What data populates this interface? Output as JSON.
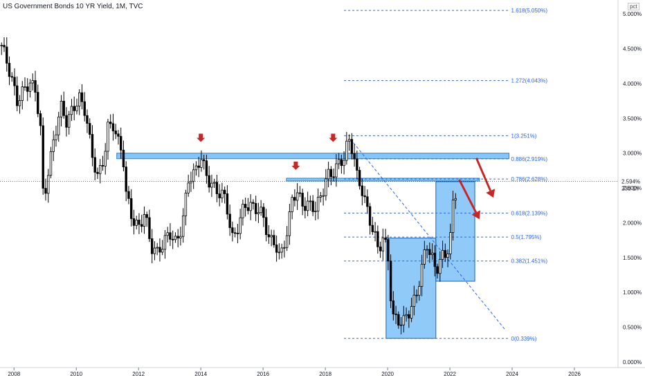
{
  "header": {
    "title": "US Government Bonds 10 YR Yield, 1M, TVC"
  },
  "price_axis": {
    "unit": "pct",
    "last_value": "2.594%",
    "countdown": "23d 1h"
  },
  "colors": {
    "candle_up": "#ffffff",
    "candle_down": "#000000",
    "fib_line": "#2962ff",
    "zone_fill": "#2196f3",
    "arrow": "#c62828",
    "axis": "#787b86"
  },
  "chart_data": {
    "type": "candlestick",
    "title": "US Government Bonds 10 YR Yield, 1M, TVC",
    "x_range": [
      2007.55,
      2027.4
    ],
    "y_range": [
      -0.08,
      5.2
    ],
    "x_ticks": [
      "2008",
      "2010",
      "2012",
      "2014",
      "2016",
      "2018",
      "2020",
      "2022",
      "2024",
      "2026"
    ],
    "y_ticks": [
      "5.000%",
      "4.500%",
      "4.000%",
      "3.500%",
      "3.000%",
      "2.500%",
      "2.000%",
      "1.500%",
      "1.000%",
      "0.500%",
      "0.000%"
    ],
    "price_path": [
      [
        2007.6,
        4.55
      ],
      [
        2007.9,
        4.05
      ],
      [
        2008.1,
        3.75
      ],
      [
        2008.3,
        3.95
      ],
      [
        2008.5,
        4.05
      ],
      [
        2008.7,
        3.85
      ],
      [
        2008.85,
        3.3
      ],
      [
        2008.95,
        2.2
      ],
      [
        2009.05,
        2.6
      ],
      [
        2009.3,
        3.3
      ],
      [
        2009.5,
        3.7
      ],
      [
        2009.7,
        3.4
      ],
      [
        2009.9,
        3.6
      ],
      [
        2010.1,
        3.8
      ],
      [
        2010.3,
        3.65
      ],
      [
        2010.5,
        3.0
      ],
      [
        2010.7,
        2.6
      ],
      [
        2010.9,
        2.9
      ],
      [
        2011.0,
        3.35
      ],
      [
        2011.2,
        3.45
      ],
      [
        2011.35,
        3.2
      ],
      [
        2011.5,
        3.0
      ],
      [
        2011.6,
        2.4
      ],
      [
        2011.8,
        2.0
      ],
      [
        2012.0,
        1.9
      ],
      [
        2012.2,
        2.2
      ],
      [
        2012.4,
        1.7
      ],
      [
        2012.6,
        1.55
      ],
      [
        2012.8,
        1.65
      ],
      [
        2013.0,
        1.85
      ],
      [
        2013.2,
        1.75
      ],
      [
        2013.4,
        2.0
      ],
      [
        2013.6,
        2.6
      ],
      [
        2013.8,
        2.65
      ],
      [
        2014.0,
        2.95
      ],
      [
        2014.2,
        2.7
      ],
      [
        2014.4,
        2.55
      ],
      [
        2014.6,
        2.4
      ],
      [
        2014.8,
        2.3
      ],
      [
        2015.0,
        1.75
      ],
      [
        2015.2,
        2.0
      ],
      [
        2015.4,
        2.3
      ],
      [
        2015.6,
        2.2
      ],
      [
        2015.8,
        2.15
      ],
      [
        2016.0,
        2.1
      ],
      [
        2016.2,
        1.8
      ],
      [
        2016.4,
        1.75
      ],
      [
        2016.5,
        1.5
      ],
      [
        2016.6,
        1.55
      ],
      [
        2016.8,
        1.85
      ],
      [
        2016.95,
        2.4
      ],
      [
        2017.1,
        2.45
      ],
      [
        2017.3,
        2.3
      ],
      [
        2017.5,
        2.25
      ],
      [
        2017.7,
        2.15
      ],
      [
        2017.9,
        2.4
      ],
      [
        2018.05,
        2.7
      ],
      [
        2018.2,
        2.75
      ],
      [
        2018.4,
        2.85
      ],
      [
        2018.6,
        2.9
      ],
      [
        2018.75,
        3.15
      ],
      [
        2018.9,
        3.0
      ],
      [
        2019.0,
        2.7
      ],
      [
        2019.2,
        2.5
      ],
      [
        2019.4,
        2.1
      ],
      [
        2019.6,
        1.75
      ],
      [
        2019.7,
        1.55
      ],
      [
        2019.85,
        1.75
      ],
      [
        2020.0,
        1.6
      ],
      [
        2020.15,
        0.7
      ],
      [
        2020.3,
        0.65
      ],
      [
        2020.5,
        0.55
      ],
      [
        2020.7,
        0.68
      ],
      [
        2020.9,
        0.9
      ],
      [
        2021.1,
        1.4
      ],
      [
        2021.25,
        1.75
      ],
      [
        2021.4,
        1.55
      ],
      [
        2021.55,
        1.25
      ],
      [
        2021.7,
        1.45
      ],
      [
        2021.85,
        1.5
      ],
      [
        2022.0,
        1.75
      ],
      [
        2022.1,
        2.3
      ],
      [
        2022.25,
        2.594
      ]
    ],
    "levels": [
      {
        "label": "1.618(5.050%)",
        "value": 5.05
      },
      {
        "label": "1.272(4.043%)",
        "value": 4.043
      },
      {
        "label": "1(3.251%)",
        "value": 3.251
      },
      {
        "label": "0.886(2.919%)",
        "value": 2.919
      },
      {
        "label": "0.786(2.628%)",
        "value": 2.628
      },
      {
        "label": "0.618(2.139%)",
        "value": 2.139
      },
      {
        "label": "0.5(1.795%)",
        "value": 1.795
      },
      {
        "label": "0.382(1.451%)",
        "value": 1.451
      },
      {
        "label": "0(0.339%)",
        "value": 0.339
      }
    ],
    "fib_x_range": [
      2018.6,
      2023.9
    ],
    "resistance_zones": [
      {
        "x0": 2011.3,
        "x1": 2023.9,
        "y0": 2.92,
        "y1": 3.0
      },
      {
        "x0": 2016.75,
        "x1": 2022.95,
        "y0": 2.6,
        "y1": 2.64
      }
    ],
    "boxes": [
      {
        "x0": 2019.95,
        "x1": 2021.55,
        "y0": 0.34,
        "y1": 1.78
      },
      {
        "x0": 2021.55,
        "x1": 2022.8,
        "y0": 1.16,
        "y1": 2.59
      }
    ],
    "trendline": [
      [
        2018.9,
        3.15
      ],
      [
        2023.8,
        0.45
      ]
    ],
    "down_arrows": [
      {
        "x": 2014.0,
        "y": 3.18
      },
      {
        "x": 2017.05,
        "y": 2.78
      },
      {
        "x": 2018.25,
        "y": 3.18
      }
    ],
    "forecast_arrows": [
      {
        "from": [
          2022.3,
          2.62
        ],
        "to": [
          2022.95,
          2.05
        ]
      },
      {
        "from": [
          2022.85,
          2.93
        ],
        "to": [
          2023.4,
          2.36
        ]
      }
    ],
    "last_price": 2.594
  }
}
